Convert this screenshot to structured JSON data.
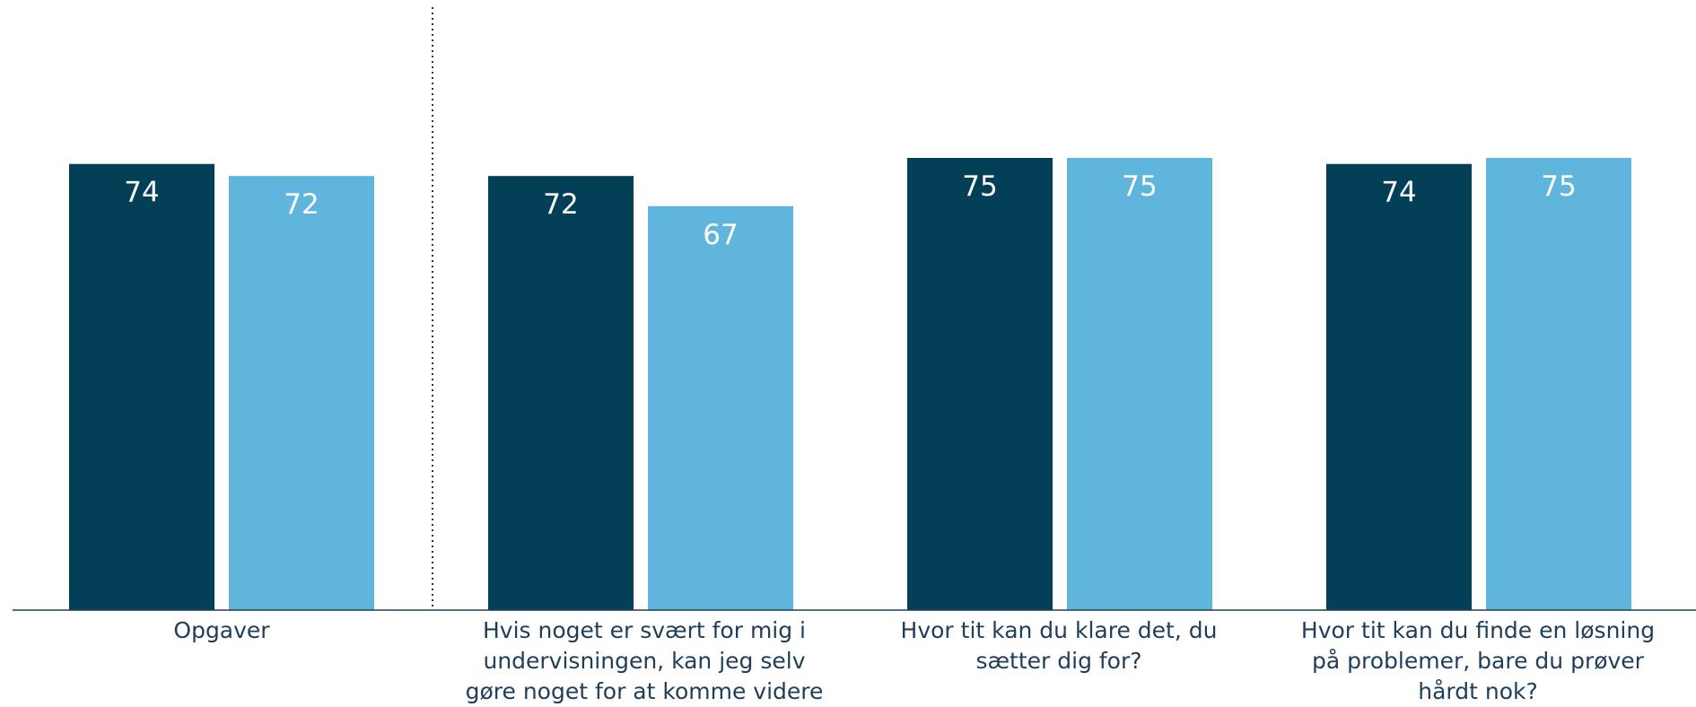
{
  "chart_data": {
    "type": "bar",
    "categories": [
      "Opgaver",
      "Hvis noget er svært for mig i undervisningen, kan jeg selv gøre noget for at komme videre",
      "Hvor tit kan du klare det, du sætter dig for?",
      "Hvor tit kan du finde en løsning på problemer, bare du prøver hårdt nok?"
    ],
    "series": [
      {
        "values": [
          74,
          72,
          75,
          74
        ],
        "color": "#033f57"
      },
      {
        "values": [
          72,
          67,
          75,
          75
        ],
        "color": "#5fb5db"
      }
    ],
    "ylim": [
      0,
      100
    ],
    "grid": false,
    "legend": "none",
    "separator_after_category": 0,
    "data_labels": true,
    "label_color": "#ffffff"
  }
}
